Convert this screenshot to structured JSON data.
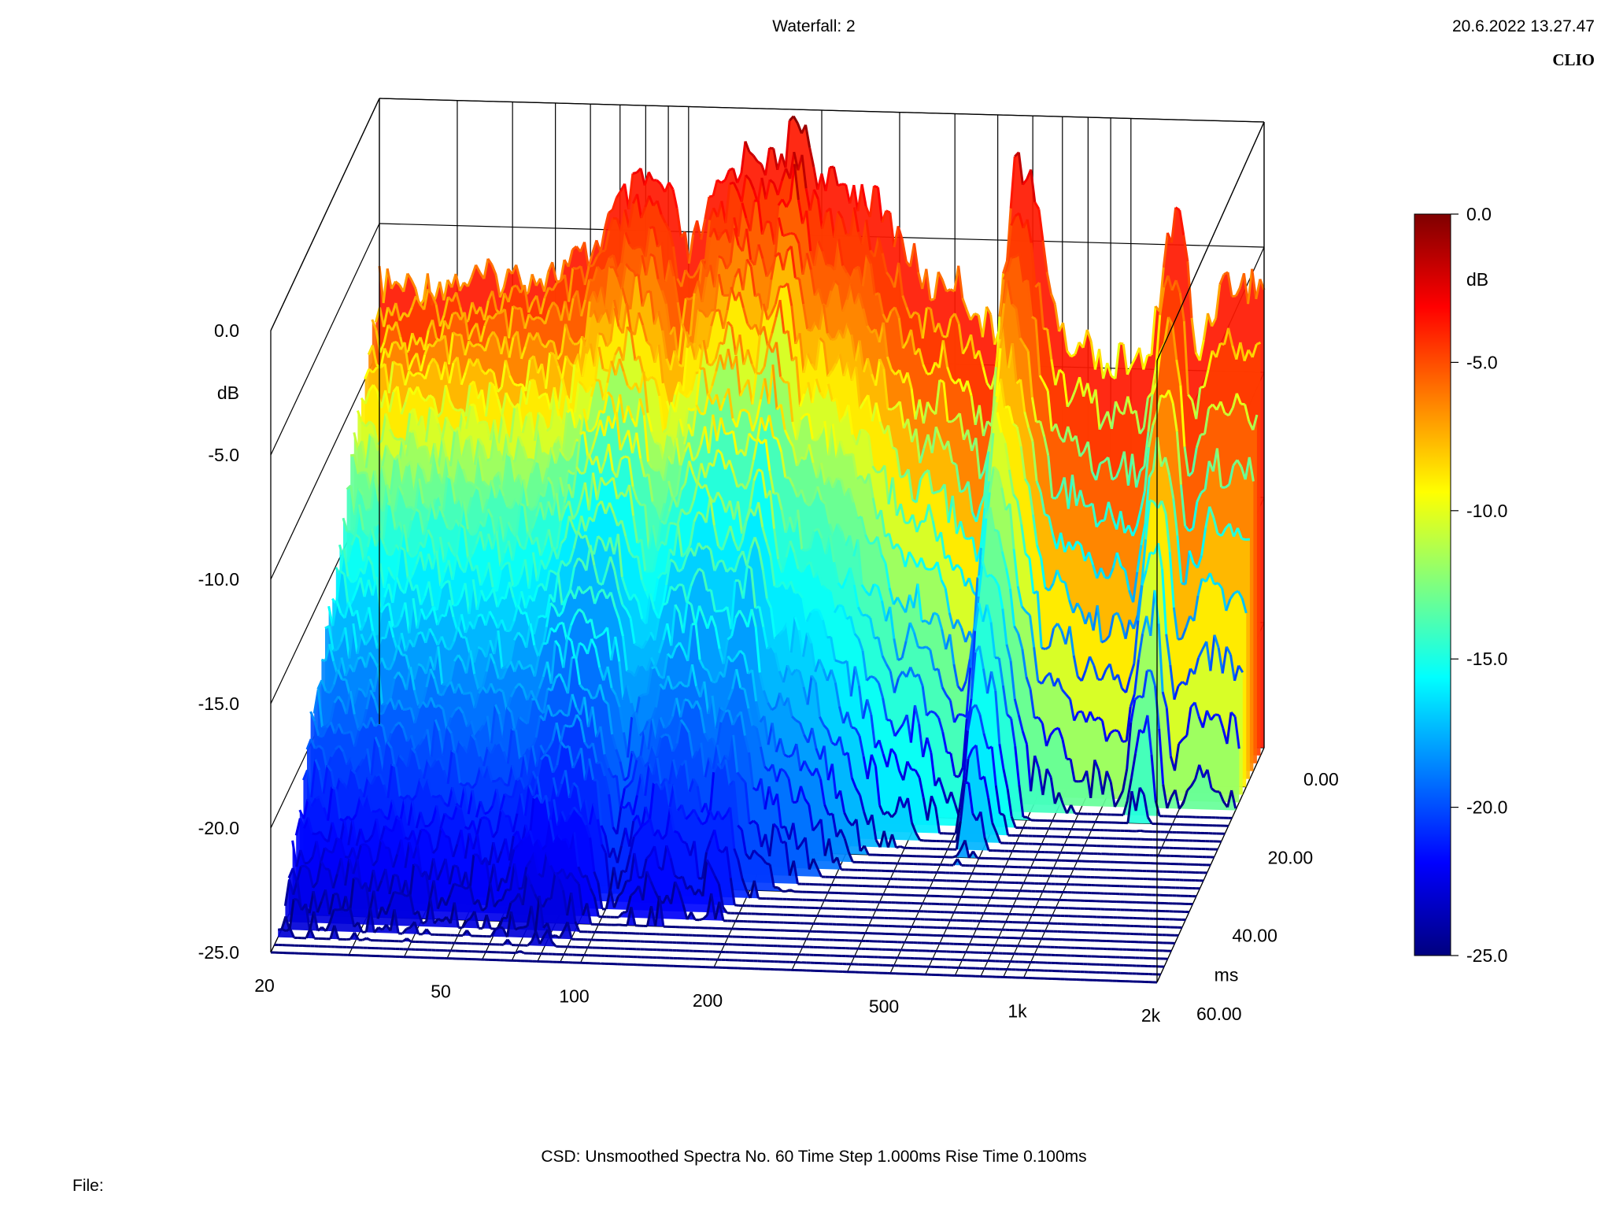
{
  "header": {
    "title": "Waterfall: 2",
    "timestamp": "20.6.2022 13.27.47",
    "brand": "CLIO"
  },
  "footer": {
    "settings": "CSD:   Unsmoothed   Spectra No. 60   Time Step 1.000ms   Rise Time 0.100ms",
    "file_label": "File:"
  },
  "chart_data": {
    "type": "waterfall",
    "title": "Waterfall: 2",
    "x_axis": {
      "scale": "log",
      "range": [
        20,
        2000
      ],
      "tick_labels": [
        "20",
        "50",
        "100",
        "200",
        "500",
        "1k",
        "2k"
      ],
      "tick_values": [
        20,
        50,
        100,
        200,
        500,
        1000,
        2000
      ]
    },
    "y_axis": {
      "unit": "ms",
      "range": [
        0,
        60
      ],
      "tick_labels": [
        "0.00",
        "20.00",
        "40.00",
        "ms",
        "60.00"
      ],
      "tick_values": [
        0,
        20,
        40,
        60
      ]
    },
    "z_axis": {
      "unit": "dB",
      "range": [
        -25,
        0
      ],
      "tick_labels": [
        "0.0",
        "dB",
        "-5.0",
        "-10.0",
        "-15.0",
        "-20.0",
        "-25.0"
      ],
      "tick_values": [
        0,
        -5,
        -10,
        -15,
        -20,
        -25
      ]
    },
    "colorbar": {
      "range": [
        -25,
        0
      ],
      "tick_labels": [
        "0.0",
        "dB",
        "-5.0",
        "-10.0",
        "-15.0",
        "-20.0",
        "-25.0"
      ],
      "tick_values": [
        0,
        -5,
        -10,
        -15,
        -20,
        -25
      ],
      "colors": [
        "#00007f",
        "#0000ff",
        "#00ffff",
        "#ffff00",
        "#ff7f00",
        "#ff0000",
        "#7f0000"
      ]
    },
    "initial_spectrum": {
      "freq_hz": [
        20,
        25,
        30,
        40,
        50,
        60,
        70,
        80,
        90,
        100,
        120,
        140,
        160,
        170,
        180,
        200,
        230,
        260,
        300,
        350,
        400,
        450,
        500,
        550,
        600,
        700,
        800,
        900,
        1000,
        1100,
        1200,
        1300,
        1400,
        1600,
        1800,
        2000
      ],
      "level_db": [
        -7.5,
        -7.5,
        -7.2,
        -7.0,
        -6.8,
        -6.0,
        -4.0,
        -3.0,
        -3.5,
        -6.0,
        -3.0,
        -1.5,
        -2.5,
        -1.0,
        -0.3,
        -3.0,
        -3.0,
        -3.5,
        -5.0,
        -7.0,
        -6.5,
        -8.0,
        -9.0,
        -1.5,
        -3.0,
        -9.0,
        -9.0,
        -10.0,
        -9.5,
        -10.0,
        -5.0,
        -3.5,
        -9.5,
        -6.5,
        -6.5,
        -6.5
      ]
    },
    "spectra_count": 60,
    "time_step_ms": 1.0,
    "rise_time_ms": 0.1,
    "smoothing": "Unsmoothed",
    "method": "CSD"
  }
}
